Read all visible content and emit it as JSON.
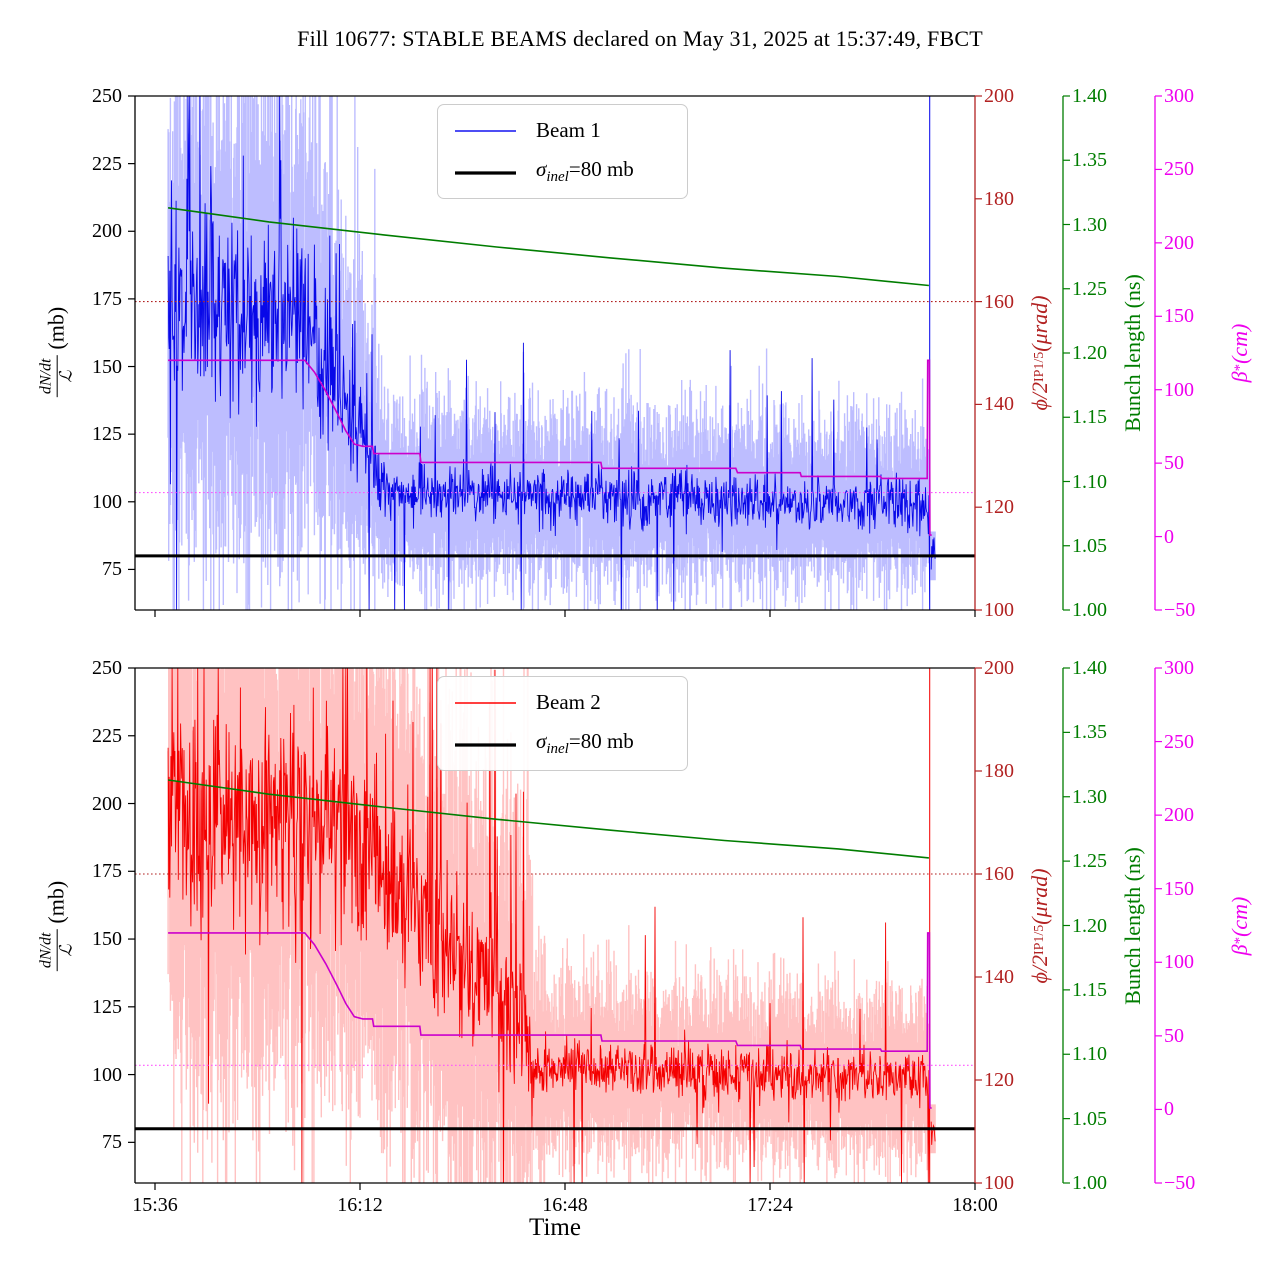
{
  "title": "Fill 10677: STABLE BEAMS declared on May 31, 2025 at 15:37:49, FBCT",
  "legend": {
    "beam1_label": "Beam 1",
    "beam2_label": "Beam 2",
    "sigma_symbol": "σ",
    "sigma_sub": "inel",
    "sigma_rest": "=80 mb"
  },
  "axes": {
    "x": {
      "label": "Time",
      "tick_labels": [
        "15:36",
        "16:12",
        "16:48",
        "17:24",
        "18:00"
      ],
      "tick_minutes": [
        0,
        36,
        72,
        108,
        144
      ]
    },
    "rate": {
      "label_num": "dN/dt",
      "label_den": "ℒ",
      "label_unit": "(mb)",
      "range": [
        60,
        250
      ],
      "ticks": [
        75,
        100,
        125,
        150,
        175,
        200,
        225,
        250
      ],
      "color": "#000000"
    },
    "crossing": {
      "label_main": "ϕ/2",
      "label_sub": "IP1/5",
      "label_unit": " (μrad)",
      "range": [
        100,
        200
      ],
      "ticks": [
        100,
        120,
        140,
        160,
        180,
        200
      ],
      "color": "#B22222"
    },
    "bunch": {
      "label": "Bunch length (ns)",
      "range": [
        1.0,
        1.4
      ],
      "ticks": [
        "1.00",
        "1.05",
        "1.10",
        "1.15",
        "1.20",
        "1.25",
        "1.30",
        "1.35",
        "1.40"
      ],
      "color": "#007D00"
    },
    "beta": {
      "label_main": "β",
      "label_sup": "*",
      "label_unit": " (cm)",
      "range": [
        -50,
        300
      ],
      "ticks": [
        "−50",
        "0",
        "50",
        "100",
        "150",
        "200",
        "250",
        "300"
      ],
      "color": "#EE00EE"
    }
  },
  "chart_data": {
    "type": "line",
    "title": "Fill 10677: STABLE BEAMS declared on May 31, 2025 at 15:37:49, FBCT",
    "x_start": "15:36",
    "x_end": "18:00",
    "data_start": "15:38",
    "data_end": "17:52",
    "sigma_inel_mb": 80,
    "crossing_angle_half_urad": 160,
    "beta_star_target_cm": 30,
    "bunch_length_ns": [
      [
        2.3,
        1.313
      ],
      [
        20,
        1.302
      ],
      [
        40,
        1.292
      ],
      [
        60,
        1.2825
      ],
      [
        80,
        1.274
      ],
      [
        100,
        1.266
      ],
      [
        120,
        1.2595
      ],
      [
        135.9,
        1.2525
      ]
    ],
    "beta_star_cm": [
      [
        2.3,
        120
      ],
      [
        26.3,
        120
      ],
      [
        28,
        112
      ],
      [
        30,
        99
      ],
      [
        32,
        84
      ],
      [
        33.5,
        72
      ],
      [
        35,
        63
      ],
      [
        36.5,
        61.5
      ],
      [
        38.2,
        61.5
      ],
      [
        38.4,
        56.5
      ],
      [
        46.5,
        56.5
      ],
      [
        46.7,
        50.5
      ],
      [
        78.3,
        50.5
      ],
      [
        78.5,
        46.5
      ],
      [
        102,
        46.5
      ],
      [
        102.3,
        43.5
      ],
      [
        113.3,
        43.5
      ],
      [
        113.5,
        41
      ],
      [
        127.4,
        41
      ],
      [
        127.6,
        39.6
      ],
      [
        135.6,
        39.6
      ],
      [
        135.7,
        120
      ],
      [
        136.0,
        120
      ],
      [
        136.08,
        1
      ],
      [
        136.4,
        1
      ]
    ],
    "beams": [
      {
        "name": "Beam 1",
        "line_color": "#0808E8",
        "band_color": "rgba(0,0,255,0.26)",
        "seed": 42,
        "end_spike_min": 136.05,
        "tail": {
          "t": [
            136.3,
            137.0
          ],
          "mean": 80
        },
        "phases": [
          {
            "t": [
              2.3,
              26
            ],
            "mean": [
              172,
              168
            ],
            "noise": [
              48,
              46
            ],
            "band": [
              70,
              68
            ],
            "burst": 0.02,
            "outlier": 0.02
          },
          {
            "t": [
              26,
              40
            ],
            "mean": [
              166,
              108
            ],
            "noise": [
              42,
              15
            ],
            "band": [
              64,
              28
            ],
            "burst": 0.15,
            "outlier": 0.03
          },
          {
            "t": [
              40,
              135.9
            ],
            "mean": [
              104,
              98
            ],
            "noise": [
              13,
              12
            ],
            "band": [
              26,
              24
            ],
            "burst": 0.0,
            "outlier": 0.035
          }
        ]
      },
      {
        "name": "Beam 2",
        "line_color": "#F40000",
        "band_color": "rgba(255,0,0,0.24)",
        "seed": 1234,
        "end_spike_min": 136.05,
        "tail": {
          "t": [
            136.3,
            137.0
          ],
          "mean": 80
        },
        "phases": [
          {
            "t": [
              2.3,
              33
            ],
            "mean": [
              196,
              192
            ],
            "noise": [
              55,
              52
            ],
            "band": [
              80,
              76
            ],
            "burst": 0.03,
            "outlier": 0.02
          },
          {
            "t": [
              33,
              66.4
            ],
            "mean": [
              190,
              112
            ],
            "noise": [
              46,
              28
            ],
            "band": [
              78,
              55
            ],
            "burst": 0.12,
            "outlier": 0.03
          },
          {
            "t": [
              66.4,
              135.9
            ],
            "mean": [
              103,
              98
            ],
            "noise": [
              13,
              12
            ],
            "band": [
              26,
              24
            ],
            "burst": 0.0,
            "outlier": 0.035
          }
        ]
      }
    ],
    "style": {
      "crossing_line_color": "#B22222",
      "beta_line_color": "#CC00CC",
      "beta_target_color": "#FF55FF",
      "bunch_line_color": "#007D00",
      "sigma_line_color": "#000000"
    }
  }
}
